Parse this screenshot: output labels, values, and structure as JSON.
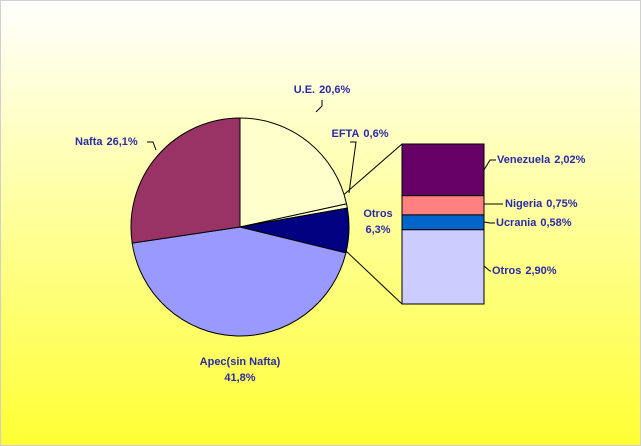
{
  "chart_data": {
    "type": "pie-of-bar",
    "pie": {
      "categories": [
        "U.E.",
        "EFTA",
        "Otros",
        "Apec(sin Nafta)",
        "Nafta"
      ],
      "values": [
        20.6,
        0.6,
        6.3,
        41.8,
        26.1
      ],
      "value_labels": [
        "20,6%",
        "0,6%",
        "6,3%",
        "41,8%",
        "26,1%"
      ],
      "colors": [
        "#ffffcc",
        "#ffffcc",
        "#000080",
        "#9999ff",
        "#993366"
      ]
    },
    "bar": {
      "categories": [
        "Venezuela",
        "Nigeria",
        "Ucrania",
        "Otros"
      ],
      "values": [
        2.02,
        0.75,
        0.58,
        2.9
      ],
      "value_labels": [
        "2,02%",
        "0,75%",
        "0,58%",
        "2,90%"
      ],
      "colors": [
        "#660066",
        "#ff8080",
        "#0066cc",
        "#ccccff"
      ]
    }
  }
}
